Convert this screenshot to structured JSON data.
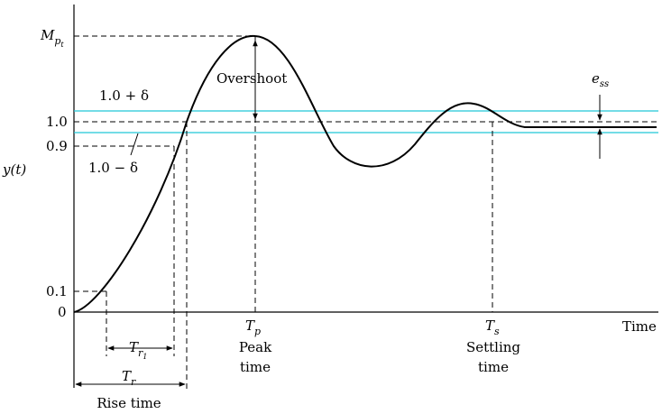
{
  "diagram": {
    "y_axis_label": "y(t)",
    "x_axis_label": "Time",
    "peak_label": "M",
    "peak_sub1": "p",
    "peak_sub2": "t",
    "tick_1_0": "1.0",
    "tick_0_9": "0.9",
    "tick_0_1": "0.1",
    "tick_0": "0",
    "band_upper": "1.0 + δ",
    "band_lower": "1.0 − δ",
    "overshoot": "Overshoot",
    "ess_main": "e",
    "ess_sub": "ss",
    "tp_main": "T",
    "tp_sub": "p",
    "tp_line1": "Peak",
    "tp_line2": "time",
    "ts_main": "T",
    "ts_sub": "s",
    "ts_line1": "Settling",
    "ts_line2": "time",
    "tr1_main": "T",
    "tr1_sub1": "r",
    "tr1_sub2": "1",
    "tr_main": "T",
    "tr_sub": "r",
    "tr_label": "Rise time"
  },
  "colors": {
    "band": "#22c6d6",
    "curve": "#000000"
  }
}
